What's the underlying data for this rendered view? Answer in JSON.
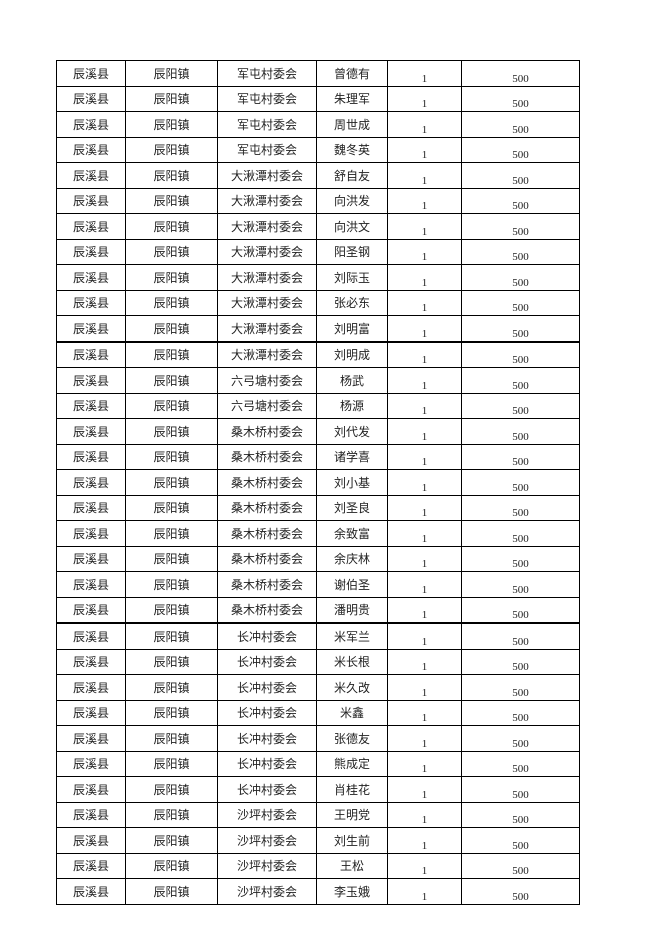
{
  "rows": [
    [
      "辰溪县",
      "辰阳镇",
      "军屯村委会",
      "曾德有",
      "1",
      "500"
    ],
    [
      "辰溪县",
      "辰阳镇",
      "军屯村委会",
      "朱理军",
      "1",
      "500"
    ],
    [
      "辰溪县",
      "辰阳镇",
      "军屯村委会",
      "周世成",
      "1",
      "500"
    ],
    [
      "辰溪县",
      "辰阳镇",
      "军屯村委会",
      "魏冬英",
      "1",
      "500"
    ],
    [
      "辰溪县",
      "辰阳镇",
      "大湫潭村委会",
      "舒自友",
      "1",
      "500"
    ],
    [
      "辰溪县",
      "辰阳镇",
      "大湫潭村委会",
      "向洪发",
      "1",
      "500"
    ],
    [
      "辰溪县",
      "辰阳镇",
      "大湫潭村委会",
      "向洪文",
      "1",
      "500"
    ],
    [
      "辰溪县",
      "辰阳镇",
      "大湫潭村委会",
      "阳圣钢",
      "1",
      "500"
    ],
    [
      "辰溪县",
      "辰阳镇",
      "大湫潭村委会",
      "刘际玉",
      "1",
      "500"
    ],
    [
      "辰溪县",
      "辰阳镇",
      "大湫潭村委会",
      "张必东",
      "1",
      "500"
    ],
    [
      "辰溪县",
      "辰阳镇",
      "大湫潭村委会",
      "刘明富",
      "1",
      "500"
    ],
    [
      "辰溪县",
      "辰阳镇",
      "大湫潭村委会",
      "刘明成",
      "1",
      "500"
    ],
    [
      "辰溪县",
      "辰阳镇",
      "六弓塘村委会",
      "杨武",
      "1",
      "500"
    ],
    [
      "辰溪县",
      "辰阳镇",
      "六弓塘村委会",
      "杨源",
      "1",
      "500"
    ],
    [
      "辰溪县",
      "辰阳镇",
      "桑木桥村委会",
      "刘代发",
      "1",
      "500"
    ],
    [
      "辰溪县",
      "辰阳镇",
      "桑木桥村委会",
      "诸学喜",
      "1",
      "500"
    ],
    [
      "辰溪县",
      "辰阳镇",
      "桑木桥村委会",
      "刘小基",
      "1",
      "500"
    ],
    [
      "辰溪县",
      "辰阳镇",
      "桑木桥村委会",
      "刘圣良",
      "1",
      "500"
    ],
    [
      "辰溪县",
      "辰阳镇",
      "桑木桥村委会",
      "余致富",
      "1",
      "500"
    ],
    [
      "辰溪县",
      "辰阳镇",
      "桑木桥村委会",
      "余庆林",
      "1",
      "500"
    ],
    [
      "辰溪县",
      "辰阳镇",
      "桑木桥村委会",
      "谢伯圣",
      "1",
      "500"
    ],
    [
      "辰溪县",
      "辰阳镇",
      "桑木桥村委会",
      "潘明贵",
      "1",
      "500"
    ],
    [
      "辰溪县",
      "辰阳镇",
      "长冲村委会",
      "米军兰",
      "1",
      "500"
    ],
    [
      "辰溪县",
      "辰阳镇",
      "长冲村委会",
      "米长根",
      "1",
      "500"
    ],
    [
      "辰溪县",
      "辰阳镇",
      "长冲村委会",
      "米久改",
      "1",
      "500"
    ],
    [
      "辰溪县",
      "辰阳镇",
      "长冲村委会",
      "米鑫",
      "1",
      "500"
    ],
    [
      "辰溪县",
      "辰阳镇",
      "长冲村委会",
      "张德友",
      "1",
      "500"
    ],
    [
      "辰溪县",
      "辰阳镇",
      "长冲村委会",
      "熊成定",
      "1",
      "500"
    ],
    [
      "辰溪县",
      "辰阳镇",
      "长冲村委会",
      "肖桂花",
      "1",
      "500"
    ],
    [
      "辰溪县",
      "辰阳镇",
      "沙坪村委会",
      "王明党",
      "1",
      "500"
    ],
    [
      "辰溪县",
      "辰阳镇",
      "沙坪村委会",
      "刘生前",
      "1",
      "500"
    ],
    [
      "辰溪县",
      "辰阳镇",
      "沙坪村委会",
      "王松",
      "1",
      "500"
    ],
    [
      "辰溪县",
      "辰阳镇",
      "沙坪村委会",
      "李玉娥",
      "1",
      "500"
    ]
  ]
}
